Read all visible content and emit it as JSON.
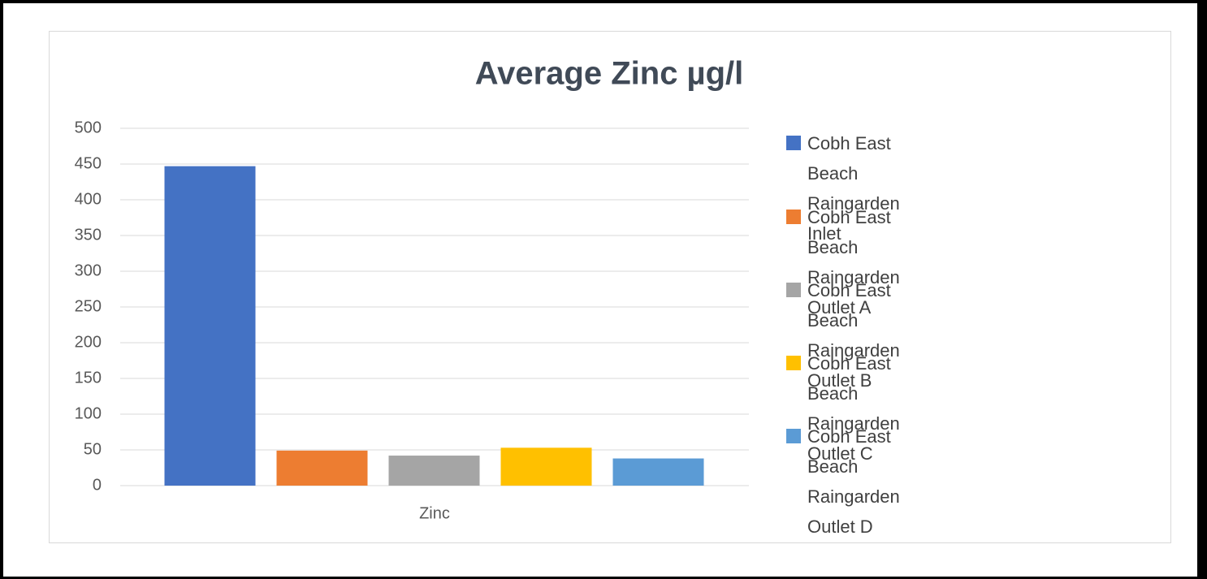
{
  "chart_data": {
    "type": "bar",
    "title": "Average Zinc µg/l",
    "categories": [
      "Zinc"
    ],
    "series": [
      {
        "name": "Cobh East Beach Raingarden Inlet",
        "color": "#4472c4",
        "values": [
          447
        ]
      },
      {
        "name": "Cobh East Beach Raingarden Outlet A",
        "color": "#ed7d31",
        "values": [
          49
        ]
      },
      {
        "name": "Cobh East Beach Raingarden Outlet B",
        "color": "#a5a5a5",
        "values": [
          42
        ]
      },
      {
        "name": "Cobh East Beach Raingarden Outlet C",
        "color": "#ffc000",
        "values": [
          53
        ]
      },
      {
        "name": "Cobh East Beach Raingarden Outlet D",
        "color": "#5b9bd5",
        "values": [
          38
        ]
      }
    ],
    "ylim": [
      0,
      500
    ],
    "yticks": [
      0,
      50,
      100,
      150,
      200,
      250,
      300,
      350,
      400,
      450,
      500
    ],
    "grid": true,
    "legend": "right"
  }
}
